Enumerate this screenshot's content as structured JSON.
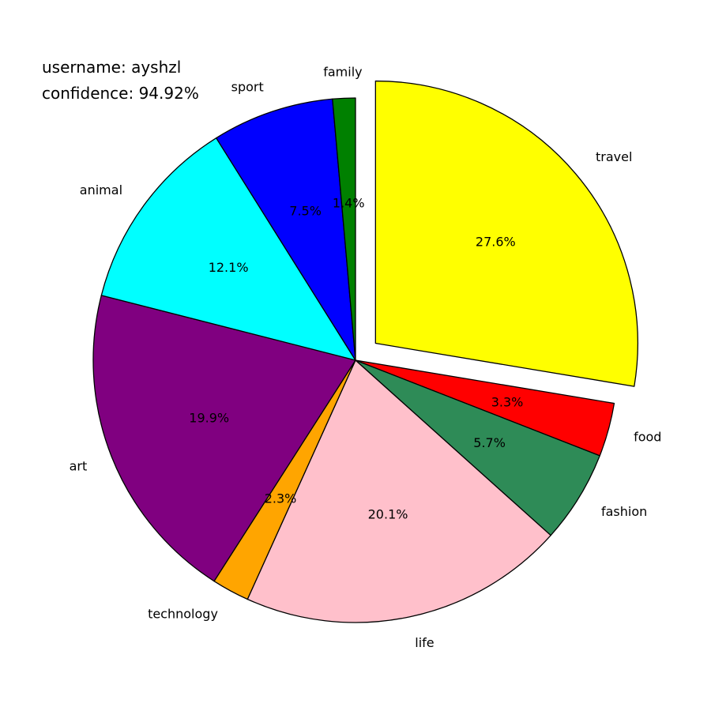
{
  "header": {
    "username_text": "username: ayshzl",
    "confidence_text": "confidence: 94.92%"
  },
  "chart_data": {
    "type": "pie",
    "start_angle_deg": 90,
    "direction": "clockwise",
    "explode_slice": "travel",
    "slices": [
      {
        "label": "travel",
        "value": 27.6,
        "pct_label": "27.6%",
        "color": "#ffff00"
      },
      {
        "label": "food",
        "value": 3.3,
        "pct_label": "3.3%",
        "color": "#ff0000"
      },
      {
        "label": "fashion",
        "value": 5.7,
        "pct_label": "5.7%",
        "color": "#2e8b57"
      },
      {
        "label": "life",
        "value": 20.1,
        "pct_label": "20.1%",
        "color": "#ffc0cb"
      },
      {
        "label": "technology",
        "value": 2.3,
        "pct_label": "2.3%",
        "color": "#ffa500"
      },
      {
        "label": "art",
        "value": 19.9,
        "pct_label": "19.9%",
        "color": "#800080"
      },
      {
        "label": "animal",
        "value": 12.1,
        "pct_label": "12.1%",
        "color": "#00ffff"
      },
      {
        "label": "sport",
        "value": 7.5,
        "pct_label": "7.5%",
        "color": "#0000ff"
      },
      {
        "label": "family",
        "value": 1.4,
        "pct_label": "1.4%",
        "color": "#008000"
      }
    ]
  }
}
